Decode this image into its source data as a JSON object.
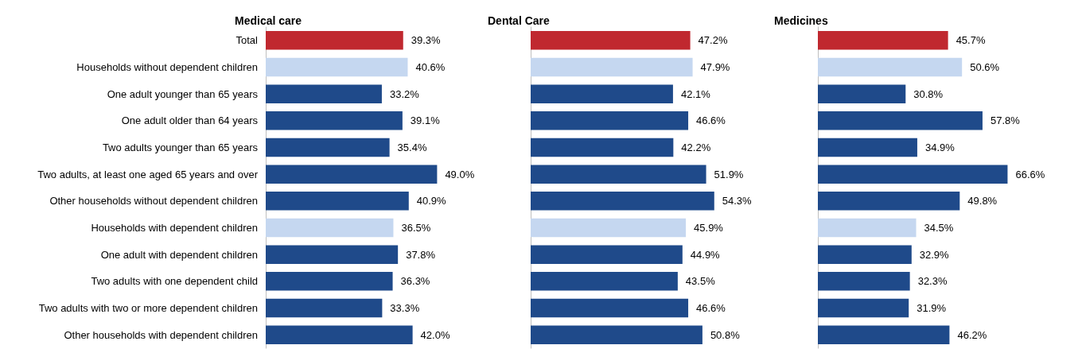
{
  "chart_data": [
    {
      "type": "bar",
      "orientation": "horizontal",
      "title": "Medical care",
      "tick_labels": "y",
      "categories": [
        "Total",
        "Households without dependent children",
        "One adult younger than 65 years",
        "One adult older than 64 years",
        "Two adults younger than 65 years",
        "Two adults, at least one aged 65 years and over",
        "Other households without dependent children",
        "Households with dependent children",
        "One adult with dependent children",
        "Two adults with one dependent child",
        "Two adults with two or more dependent children",
        "Other households with dependent children"
      ],
      "values": [
        39.3,
        40.6,
        33.2,
        39.1,
        35.4,
        49.0,
        40.9,
        36.5,
        37.8,
        36.3,
        33.3,
        42.0
      ],
      "value_labels": [
        "39.3%",
        "40.6%",
        "33.2%",
        "39.1%",
        "35.4%",
        "49.0%",
        "40.9%",
        "36.5%",
        "37.8%",
        "36.3%",
        "33.3%",
        "42.0%"
      ],
      "colors": [
        "#c0282f",
        "#c5d7f0",
        "#1f4a8a",
        "#1f4a8a",
        "#1f4a8a",
        "#1f4a8a",
        "#1f4a8a",
        "#c5d7f0",
        "#1f4a8a",
        "#1f4a8a",
        "#1f4a8a",
        "#1f4a8a"
      ]
    },
    {
      "type": "bar",
      "orientation": "horizontal",
      "title": "Dental Care",
      "tick_labels": false,
      "categories": [
        null,
        null,
        null,
        null,
        null,
        null,
        null,
        null,
        null,
        null,
        null,
        null
      ],
      "values": [
        47.2,
        47.9,
        42.1,
        46.6,
        42.2,
        51.9,
        54.3,
        45.9,
        44.9,
        43.5,
        46.6,
        50.8
      ],
      "value_labels": [
        "47.2%",
        "47.9%",
        "42.1%",
        "46.6%",
        "42.2%",
        "51.9%",
        "54.3%",
        "45.9%",
        "44.9%",
        "43.5%",
        "46.6%",
        "50.8%"
      ],
      "colors": [
        "#c0282f",
        "#c5d7f0",
        "#1f4a8a",
        "#1f4a8a",
        "#1f4a8a",
        "#1f4a8a",
        "#1f4a8a",
        "#c5d7f0",
        "#1f4a8a",
        "#1f4a8a",
        "#1f4a8a",
        "#1f4a8a"
      ]
    },
    {
      "type": "bar",
      "orientation": "horizontal",
      "title": "Medicines",
      "tick_labels": false,
      "categories": [
        null,
        null,
        null,
        null,
        null,
        null,
        null,
        null,
        null,
        null,
        null,
        null
      ],
      "values": [
        45.7,
        50.6,
        30.8,
        57.8,
        34.9,
        66.6,
        49.8,
        34.5,
        32.9,
        32.3,
        31.9,
        46.2
      ],
      "value_labels": [
        "45.7%",
        "50.6%",
        "30.8%",
        "57.8%",
        "34.9%",
        "66.6%",
        "49.8%",
        "34.5%",
        "32.9%",
        "32.3%",
        "31.9%",
        "46.2%"
      ],
      "colors": [
        "#c0282f",
        "#c5d7f0",
        "#1f4a8a",
        "#1f4a8a",
        "#1f4a8a",
        "#1f4a8a",
        "#1f4a8a",
        "#c5d7f0",
        "#1f4a8a",
        "#1f4a8a",
        "#1f4a8a",
        "#1f4a8a"
      ]
    }
  ]
}
